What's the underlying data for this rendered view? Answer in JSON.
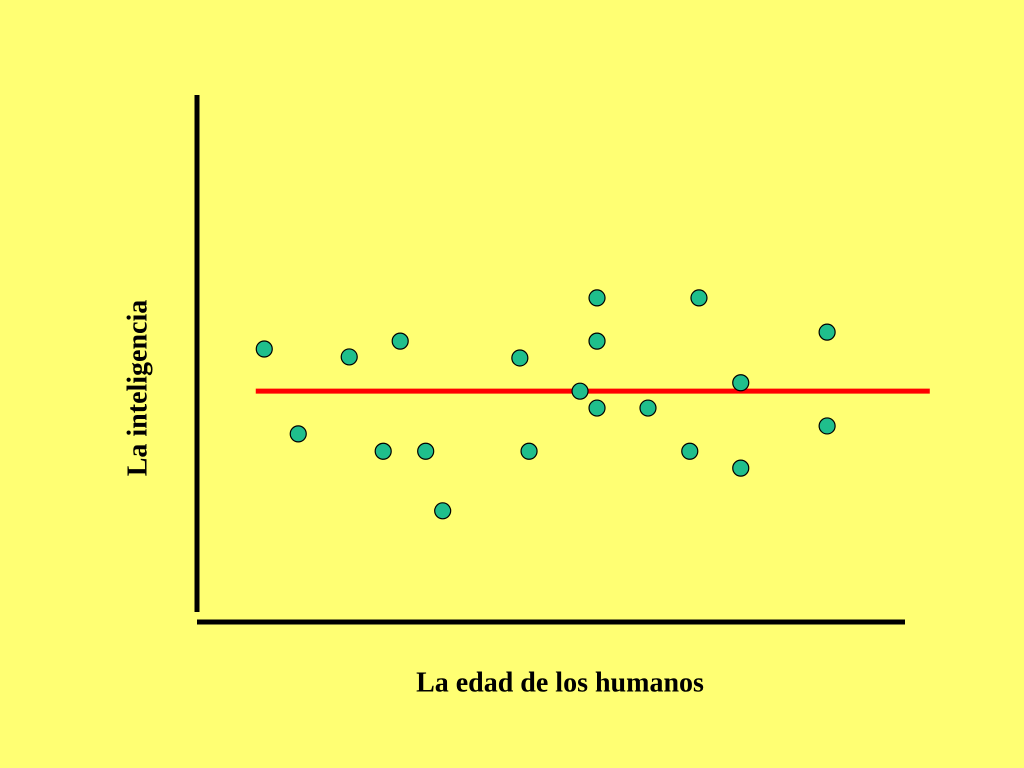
{
  "chart_data": {
    "type": "scatter",
    "x_label": "La edad de los humanos",
    "y_label": "La inteligencia",
    "xlim": [
      0,
      100
    ],
    "ylim": [
      0,
      100
    ],
    "point_color": "#1fbf8c",
    "x": [
      9.5,
      14.3,
      21.5,
      26.3,
      28.7,
      32.3,
      34.7,
      45.6,
      46.9,
      54.1,
      56.5,
      56.5,
      56.5,
      63.7,
      69.6,
      70.9,
      76.8,
      76.8,
      89.0,
      89.0
    ],
    "y": [
      51.8,
      35.7,
      50.3,
      32.4,
      53.3,
      32.4,
      21.1,
      50.1,
      32.4,
      43.8,
      61.5,
      53.3,
      40.6,
      40.6,
      32.4,
      61.5,
      45.4,
      29.2,
      55.0,
      37.2
    ],
    "trend_line": {
      "color": "#ff0000",
      "x": [
        8.3,
        103.5
      ],
      "y": [
        43.8,
        43.8
      ]
    }
  }
}
